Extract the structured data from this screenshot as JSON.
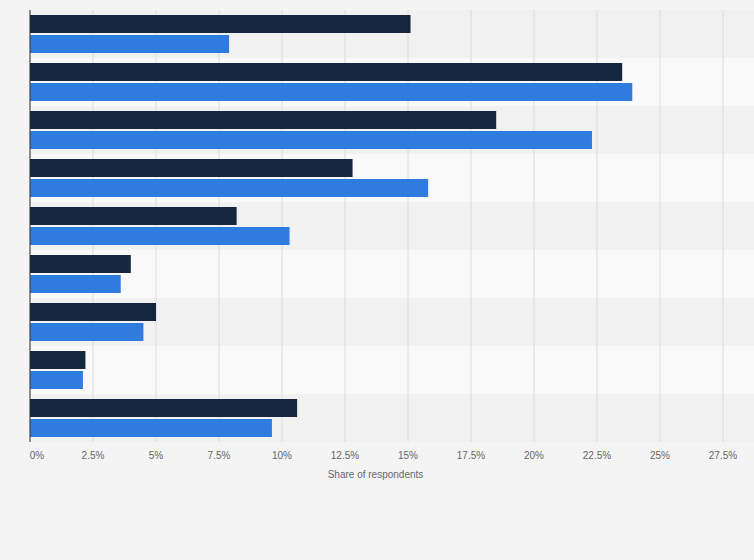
{
  "chart_data": {
    "type": "bar",
    "orientation": "horizontal",
    "x_label": "Share of respondents",
    "categories": [
      null,
      null,
      null,
      null,
      null,
      null,
      null,
      null,
      null
    ],
    "series": [
      {
        "color": "#14273f",
        "values": [
          15.1,
          23.5,
          18.5,
          12.8,
          8.2,
          4.0,
          5.0,
          2.2,
          10.6
        ]
      },
      {
        "color": "#2f7be0",
        "values": [
          7.9,
          23.9,
          22.3,
          15.8,
          10.3,
          3.6,
          4.5,
          2.1,
          9.6
        ]
      }
    ],
    "xlim": [
      0,
      27.5
    ],
    "xticks": [
      {
        "value": 0,
        "label": "0%"
      },
      {
        "value": 2.5,
        "label": "2.5%"
      },
      {
        "value": 5,
        "label": "5%"
      },
      {
        "value": 7.5,
        "label": "7.5%"
      },
      {
        "value": 10,
        "label": "10%"
      },
      {
        "value": 12.5,
        "label": "12.5%"
      },
      {
        "value": 15,
        "label": "15%"
      },
      {
        "value": 17.5,
        "label": "17.5%"
      },
      {
        "value": 20,
        "label": "20%"
      },
      {
        "value": 22.5,
        "label": "22.5%"
      },
      {
        "value": 25,
        "label": "25%"
      },
      {
        "value": 27.5,
        "label": "27.5%"
      }
    ],
    "grid": true,
    "tick_labels": "x"
  }
}
